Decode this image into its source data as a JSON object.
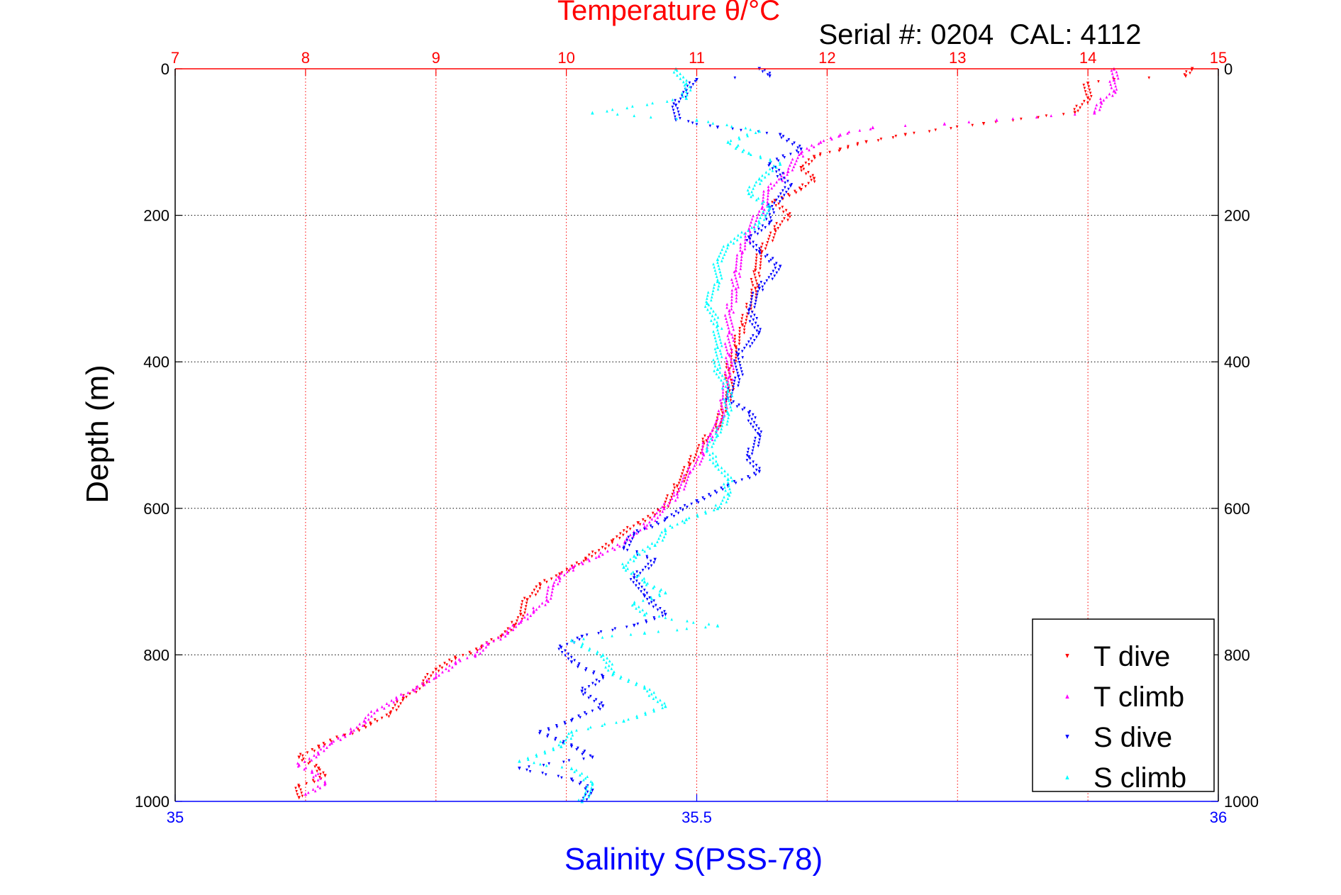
{
  "figure": {
    "top_title": "Temperature θ/°C",
    "serial_label": "Serial #: 0204  CAL: 4112",
    "ylabel": "Depth (m)",
    "xlabel_bottom": "Salinity S(PSS-78)"
  },
  "colors": {
    "temperature_axis": "#ff0000",
    "salinity_axis": "#0000ff",
    "t_dive": "#ff0000",
    "t_climb": "#ff00ff",
    "s_dive": "#0000ff",
    "s_climb": "#00ffff"
  },
  "chart_data": {
    "type": "scatter",
    "grid": true,
    "legend_placement": "bottom-right",
    "y_axis": {
      "label": "Depth (m)",
      "range": [
        0,
        1000
      ],
      "reversed": true,
      "ticks": [
        0,
        200,
        400,
        600,
        800,
        1000
      ],
      "tick_labels_both_sides": true
    },
    "x_top": {
      "label": "Temperature θ/°C",
      "range": [
        7,
        15
      ],
      "ticks": [
        7,
        8,
        9,
        10,
        11,
        12,
        13,
        14,
        15
      ],
      "color": "#ff0000"
    },
    "x_bottom": {
      "label": "Salinity S(PSS-78)",
      "range": [
        35,
        36
      ],
      "ticks": [
        35,
        35.5,
        36
      ],
      "color": "#0000ff"
    },
    "series": [
      {
        "name": "T dive",
        "axis": "temperature",
        "marker": "triangle-down",
        "color": "#ff0000",
        "points": [
          [
            14.8,
            0
          ],
          [
            14.75,
            10
          ],
          [
            14.2,
            15
          ],
          [
            14.0,
            20
          ],
          [
            14.0,
            40
          ],
          [
            13.9,
            60
          ],
          [
            13.2,
            75
          ],
          [
            12.6,
            90
          ],
          [
            12.3,
            100
          ],
          [
            12.1,
            110
          ],
          [
            11.9,
            120
          ],
          [
            11.8,
            135
          ],
          [
            11.9,
            150
          ],
          [
            11.8,
            165
          ],
          [
            11.6,
            180
          ],
          [
            11.7,
            200
          ],
          [
            11.6,
            220
          ],
          [
            11.5,
            250
          ],
          [
            11.45,
            275
          ],
          [
            11.45,
            300
          ],
          [
            11.4,
            330
          ],
          [
            11.35,
            350
          ],
          [
            11.3,
            380
          ],
          [
            11.25,
            410
          ],
          [
            11.25,
            440
          ],
          [
            11.2,
            470
          ],
          [
            11.15,
            490
          ],
          [
            11.05,
            510
          ],
          [
            10.95,
            540
          ],
          [
            10.85,
            570
          ],
          [
            10.75,
            600
          ],
          [
            10.55,
            620
          ],
          [
            10.35,
            645
          ],
          [
            10.15,
            670
          ],
          [
            9.95,
            690
          ],
          [
            9.8,
            705
          ],
          [
            9.7,
            725
          ],
          [
            9.65,
            745
          ],
          [
            9.6,
            760
          ],
          [
            9.5,
            775
          ],
          [
            9.35,
            790
          ],
          [
            9.15,
            805
          ],
          [
            9.0,
            820
          ],
          [
            8.9,
            840
          ],
          [
            8.75,
            860
          ],
          [
            8.65,
            880
          ],
          [
            8.5,
            895
          ],
          [
            8.3,
            910
          ],
          [
            8.1,
            925
          ],
          [
            7.95,
            940
          ],
          [
            8.1,
            955
          ],
          [
            8.15,
            965
          ],
          [
            7.95,
            980
          ],
          [
            7.95,
            995
          ]
        ]
      },
      {
        "name": "T climb",
        "axis": "temperature",
        "marker": "triangle-up",
        "color": "#ff00ff",
        "points": [
          [
            14.2,
            0
          ],
          [
            14.2,
            15
          ],
          [
            14.2,
            30
          ],
          [
            14.1,
            45
          ],
          [
            14.05,
            60
          ],
          [
            13.3,
            70
          ],
          [
            12.9,
            75
          ],
          [
            12.35,
            80
          ],
          [
            12.1,
            90
          ],
          [
            11.95,
            100
          ],
          [
            11.8,
            115
          ],
          [
            11.7,
            140
          ],
          [
            11.55,
            165
          ],
          [
            11.5,
            190
          ],
          [
            11.4,
            220
          ],
          [
            11.35,
            250
          ],
          [
            11.3,
            275
          ],
          [
            11.3,
            300
          ],
          [
            11.25,
            330
          ],
          [
            11.25,
            360
          ],
          [
            11.25,
            390
          ],
          [
            11.25,
            420
          ],
          [
            11.2,
            450
          ],
          [
            11.2,
            475
          ],
          [
            11.1,
            500
          ],
          [
            11.05,
            525
          ],
          [
            10.95,
            550
          ],
          [
            10.85,
            580
          ],
          [
            10.75,
            600
          ],
          [
            10.6,
            625
          ],
          [
            10.45,
            645
          ],
          [
            10.25,
            665
          ],
          [
            10.05,
            680
          ],
          [
            9.95,
            695
          ],
          [
            9.9,
            705
          ],
          [
            9.85,
            725
          ],
          [
            9.75,
            740
          ],
          [
            9.65,
            755
          ],
          [
            9.55,
            770
          ],
          [
            9.4,
            785
          ],
          [
            9.3,
            800
          ],
          [
            9.15,
            810
          ],
          [
            9.0,
            830
          ],
          [
            8.85,
            845
          ],
          [
            8.7,
            860
          ],
          [
            8.55,
            875
          ],
          [
            8.45,
            890
          ],
          [
            8.35,
            905
          ],
          [
            8.2,
            920
          ],
          [
            8.1,
            935
          ],
          [
            7.95,
            950
          ],
          [
            8.05,
            960
          ],
          [
            8.15,
            975
          ],
          [
            8.0,
            990
          ]
        ]
      },
      {
        "name": "S dive",
        "axis": "salinity",
        "marker": "triangle-down",
        "color": "#0000ff",
        "points": [
          [
            35.56,
            0
          ],
          [
            35.57,
            10
          ],
          [
            35.5,
            15
          ],
          [
            35.49,
            30
          ],
          [
            35.48,
            50
          ],
          [
            35.48,
            70
          ],
          [
            35.52,
            80
          ],
          [
            35.58,
            90
          ],
          [
            35.6,
            110
          ],
          [
            35.57,
            130
          ],
          [
            35.59,
            160
          ],
          [
            35.57,
            190
          ],
          [
            35.57,
            210
          ],
          [
            35.55,
            230
          ],
          [
            35.56,
            250
          ],
          [
            35.58,
            270
          ],
          [
            35.56,
            300
          ],
          [
            35.55,
            330
          ],
          [
            35.56,
            360
          ],
          [
            35.54,
            390
          ],
          [
            35.54,
            420
          ],
          [
            35.53,
            450
          ],
          [
            35.55,
            470
          ],
          [
            35.56,
            500
          ],
          [
            35.55,
            530
          ],
          [
            35.56,
            550
          ],
          [
            35.53,
            570
          ],
          [
            35.5,
            590
          ],
          [
            35.47,
            615
          ],
          [
            35.44,
            635
          ],
          [
            35.43,
            655
          ],
          [
            35.46,
            670
          ],
          [
            35.44,
            695
          ],
          [
            35.45,
            720
          ],
          [
            35.47,
            745
          ],
          [
            35.44,
            760
          ],
          [
            35.39,
            775
          ],
          [
            35.37,
            790
          ],
          [
            35.38,
            810
          ],
          [
            35.41,
            830
          ],
          [
            35.39,
            850
          ],
          [
            35.41,
            870
          ],
          [
            35.38,
            890
          ],
          [
            35.35,
            905
          ],
          [
            35.38,
            925
          ],
          [
            35.4,
            940
          ],
          [
            35.33,
            955
          ],
          [
            35.38,
            970
          ],
          [
            35.4,
            985
          ],
          [
            35.39,
            1000
          ]
        ]
      },
      {
        "name": "S climb",
        "axis": "salinity",
        "marker": "triangle-up",
        "color": "#00ffff",
        "points": [
          [
            35.48,
            0
          ],
          [
            35.49,
            20
          ],
          [
            35.49,
            40
          ],
          [
            35.4,
            60
          ],
          [
            35.5,
            70
          ],
          [
            35.56,
            85
          ],
          [
            35.53,
            100
          ],
          [
            35.55,
            115
          ],
          [
            35.58,
            130
          ],
          [
            35.56,
            150
          ],
          [
            35.55,
            170
          ],
          [
            35.57,
            190
          ],
          [
            35.56,
            210
          ],
          [
            35.53,
            240
          ],
          [
            35.52,
            260
          ],
          [
            35.52,
            290
          ],
          [
            35.51,
            320
          ],
          [
            35.52,
            350
          ],
          [
            35.52,
            380
          ],
          [
            35.52,
            410
          ],
          [
            35.53,
            440
          ],
          [
            35.53,
            470
          ],
          [
            35.52,
            500
          ],
          [
            35.51,
            520
          ],
          [
            35.52,
            540
          ],
          [
            35.53,
            560
          ],
          [
            35.53,
            580
          ],
          [
            35.52,
            600
          ],
          [
            35.49,
            615
          ],
          [
            35.47,
            630
          ],
          [
            35.46,
            650
          ],
          [
            35.44,
            665
          ],
          [
            35.43,
            680
          ],
          [
            35.45,
            700
          ],
          [
            35.47,
            715
          ],
          [
            35.44,
            730
          ],
          [
            35.45,
            745
          ],
          [
            35.52,
            760
          ],
          [
            35.45,
            770
          ],
          [
            35.38,
            780
          ],
          [
            35.41,
            800
          ],
          [
            35.42,
            825
          ],
          [
            35.45,
            845
          ],
          [
            35.47,
            870
          ],
          [
            35.43,
            890
          ],
          [
            35.38,
            905
          ],
          [
            35.37,
            925
          ],
          [
            35.33,
            945
          ],
          [
            35.38,
            955
          ],
          [
            35.4,
            975
          ],
          [
            35.39,
            1000
          ]
        ]
      }
    ]
  }
}
